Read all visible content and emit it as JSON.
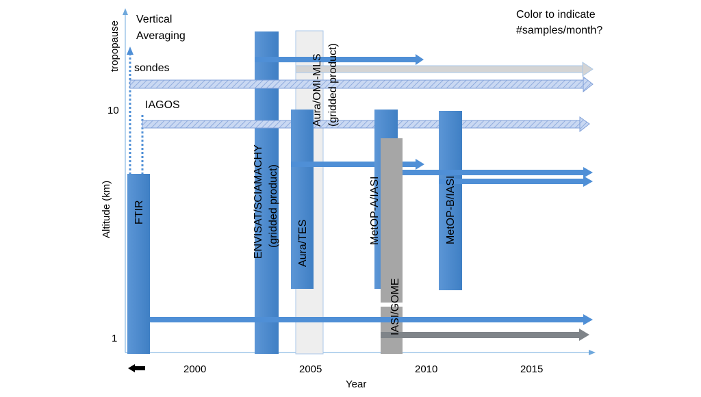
{
  "chart_data": {
    "type": "timeline",
    "xlabel": "Year",
    "ylabel": "Altitude (km)",
    "x_ticks": [
      "2000",
      "2005",
      "2010",
      "2015"
    ],
    "y_ticks": [
      "1",
      "10"
    ],
    "y_top_label": "tropopause",
    "vertical_averaging_label": "Vertical\nAveraging",
    "color_note": "Color to indicate\n#samples/month?",
    "colors": {
      "bar_blue": "#4a86c8",
      "bar_blue_light": "#6fa3dc",
      "bar_gray": "#a6a6a6",
      "bar_white": "#f0f0f0",
      "arrow_blue": "#4f8fd6",
      "arrow_gray": "#7f8489",
      "arrow_silver": "#d4d4d4",
      "hatch": "#a9c2ea",
      "axis": "#6fa8dc"
    },
    "instruments": [
      {
        "id": "ftir",
        "label": "FTIR"
      },
      {
        "id": "envisat",
        "label": "ENVISAT/SCIAMACHY\n(gridded product)"
      },
      {
        "id": "omi-mls",
        "label": "Aura/OMI-MLS\n(gridded product)"
      },
      {
        "id": "tes",
        "label": "Aura/TES"
      },
      {
        "id": "metop-a",
        "label": "MetOP-A/IASI"
      },
      {
        "id": "iasi-gome",
        "label": "IASI/GOME"
      },
      {
        "id": "metop-b",
        "label": "MetOP-B/IASI"
      }
    ],
    "in_situ": [
      {
        "id": "sondes",
        "label": "sondes"
      },
      {
        "id": "iagos",
        "label": "IAGOS"
      }
    ]
  }
}
